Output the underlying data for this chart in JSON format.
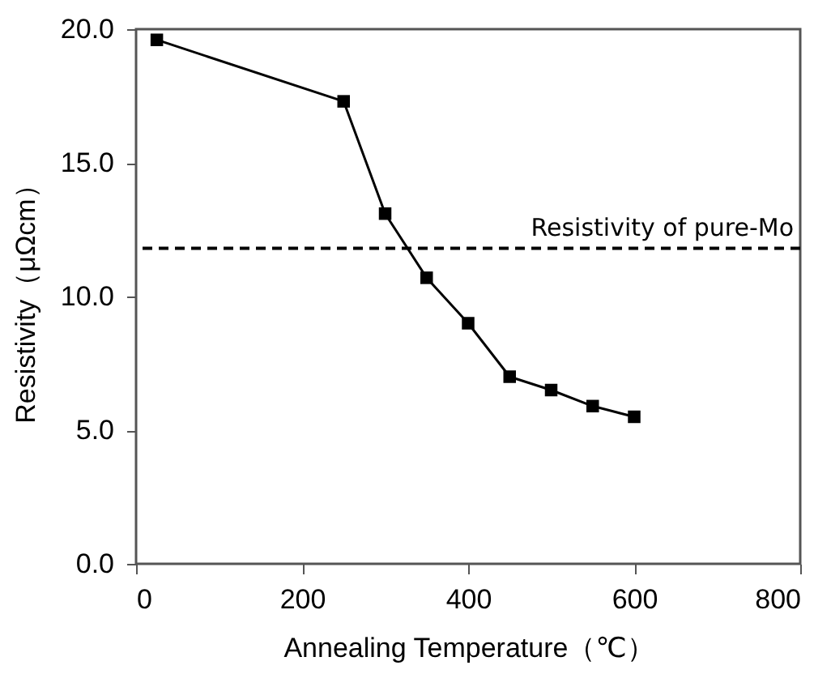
{
  "chart_data": {
    "type": "line",
    "xlabel": "Annealing Temperature（℃）",
    "ylabel": "Resistivity（μΩcm）",
    "x": [
      25,
      250,
      300,
      350,
      400,
      450,
      500,
      550,
      600
    ],
    "series": [
      {
        "color": "#000000",
        "values": [
          19.6,
          17.3,
          13.1,
          10.7,
          9.0,
          7.0,
          6.5,
          5.9,
          5.5
        ]
      }
    ],
    "xlim": [
      0,
      800
    ],
    "xticks": [
      0,
      200,
      400,
      600,
      800
    ],
    "ylim": [
      0,
      20
    ],
    "yticks": [
      {
        "value": 0,
        "label": "0.0"
      },
      {
        "value": 5,
        "label": "5.0"
      },
      {
        "value": 10,
        "label": "10.0"
      },
      {
        "value": 15,
        "label": "15.0"
      },
      {
        "value": 20,
        "label": "20.0"
      }
    ],
    "ref_lines": [
      {
        "axis": "y",
        "value": 11.8,
        "label": "Resistivity of pure-Mo",
        "color": "#000000",
        "line_style": "dashed"
      }
    ],
    "marker": "square",
    "line_style": "solid",
    "grid": false
  }
}
